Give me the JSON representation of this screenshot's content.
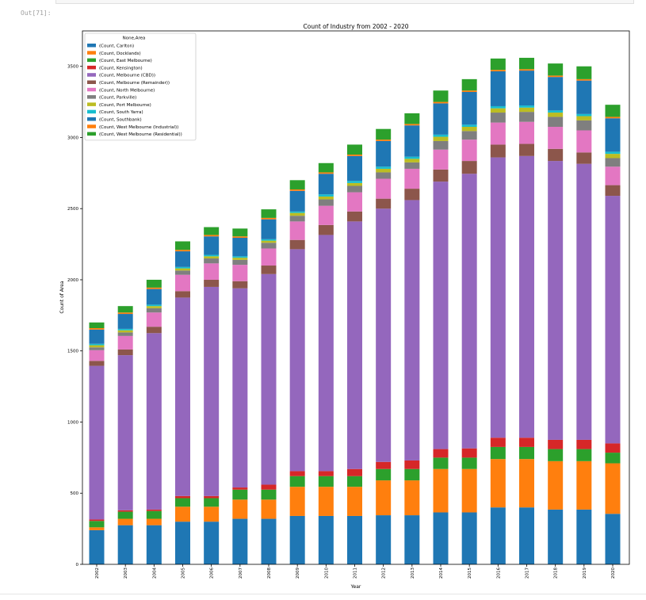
{
  "notebook": {
    "out_prompt": "Out[71]:"
  },
  "chart_data": {
    "type": "bar",
    "stacked": true,
    "title": "Count of Industry from 2002 - 2020",
    "xlabel": "Year",
    "ylabel": "Count of Area",
    "ylim": [
      0,
      3700
    ],
    "yticks": [
      0,
      500,
      1000,
      1500,
      2000,
      2500,
      3000,
      3500
    ],
    "legend_title": "None,Area",
    "legend_position": "top-left",
    "categories": [
      "2002",
      "2003",
      "2004",
      "2005",
      "2006",
      "2007",
      "2008",
      "2009",
      "2010",
      "2011",
      "2012",
      "2013",
      "2014",
      "2015",
      "2016",
      "2017",
      "2018",
      "2019",
      "2020"
    ],
    "series": [
      {
        "name": "(Count, Carlton)",
        "color": "#1f77b4",
        "values": [
          240,
          275,
          275,
          300,
          300,
          320,
          320,
          340,
          340,
          340,
          345,
          345,
          365,
          365,
          400,
          400,
          385,
          385,
          355
        ]
      },
      {
        "name": "(Count, Docklands)",
        "color": "#ff7f0e",
        "values": [
          20,
          45,
          45,
          105,
          105,
          135,
          135,
          205,
          205,
          205,
          245,
          245,
          305,
          305,
          340,
          340,
          340,
          340,
          355
        ]
      },
      {
        "name": "(Count, East Melbourne)",
        "color": "#2ca02c",
        "values": [
          45,
          50,
          55,
          60,
          60,
          70,
          70,
          75,
          75,
          75,
          80,
          80,
          80,
          80,
          85,
          85,
          85,
          85,
          75
        ]
      },
      {
        "name": "(Count, Kensington)",
        "color": "#d62728",
        "values": [
          10,
          10,
          10,
          15,
          15,
          15,
          35,
          35,
          35,
          50,
          50,
          60,
          60,
          65,
          65,
          65,
          65,
          65,
          65
        ]
      },
      {
        "name": "(Count, Melbourne (CBD))",
        "color": "#9467bd",
        "values": [
          1080,
          1090,
          1240,
          1395,
          1470,
          1400,
          1480,
          1560,
          1660,
          1740,
          1780,
          1830,
          1880,
          1930,
          1970,
          1980,
          1960,
          1940,
          1740
        ]
      },
      {
        "name": "(Count, Melbourne (Remainder))",
        "color": "#8c564b",
        "values": [
          35,
          40,
          45,
          45,
          50,
          50,
          60,
          65,
          70,
          70,
          70,
          80,
          85,
          90,
          90,
          85,
          85,
          80,
          75
        ]
      },
      {
        "name": "(Count, North Melbourne)",
        "color": "#e377c2",
        "values": [
          75,
          95,
          100,
          115,
          115,
          115,
          120,
          130,
          135,
          135,
          140,
          140,
          140,
          150,
          155,
          155,
          155,
          155,
          130
        ]
      },
      {
        "name": "(Count, Parkville)",
        "color": "#7f7f7f",
        "values": [
          20,
          25,
          30,
          30,
          35,
          35,
          40,
          40,
          45,
          45,
          45,
          45,
          60,
          60,
          70,
          70,
          70,
          70,
          60
        ]
      },
      {
        "name": "(Count, Port Melbourne)",
        "color": "#bcbd22",
        "values": [
          15,
          15,
          15,
          15,
          15,
          15,
          15,
          20,
          20,
          20,
          25,
          25,
          30,
          30,
          30,
          30,
          30,
          30,
          30
        ]
      },
      {
        "name": "(Count, South Yarra)",
        "color": "#17becf",
        "values": [
          10,
          10,
          10,
          10,
          10,
          10,
          10,
          10,
          15,
          15,
          15,
          15,
          15,
          15,
          15,
          15,
          15,
          15,
          15
        ]
      },
      {
        "name": "(Count, Southbank)",
        "color": "#1f77b4",
        "values": [
          100,
          105,
          110,
          110,
          130,
          130,
          140,
          145,
          145,
          175,
          180,
          220,
          220,
          230,
          245,
          245,
          235,
          235,
          235
        ]
      },
      {
        "name": "(Count, West Melbourne (Industrial))",
        "color": "#ff7f0e",
        "values": [
          10,
          10,
          10,
          10,
          10,
          10,
          10,
          10,
          10,
          10,
          10,
          10,
          10,
          10,
          10,
          10,
          10,
          10,
          10
        ]
      },
      {
        "name": "(Count, West Melbourne (Residential))",
        "color": "#2ca02c",
        "values": [
          40,
          45,
          55,
          60,
          55,
          55,
          60,
          65,
          65,
          70,
          75,
          75,
          80,
          80,
          80,
          80,
          85,
          90,
          85
        ]
      }
    ]
  }
}
